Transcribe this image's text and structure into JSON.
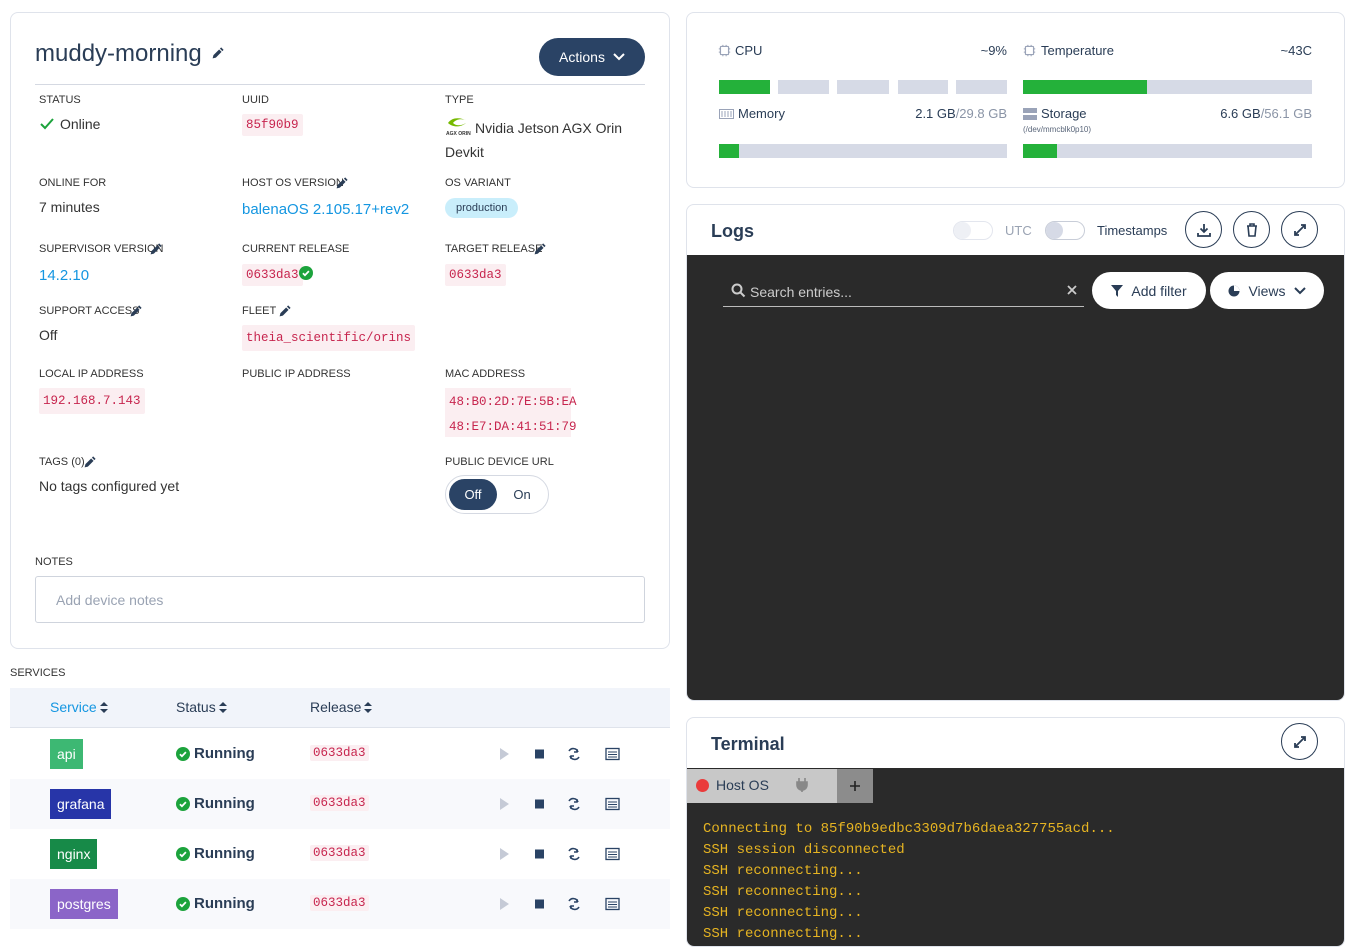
{
  "device": {
    "name": "muddy-morning",
    "actions": "Actions"
  },
  "details": {
    "status": {
      "label": "STATUS",
      "value": "Online"
    },
    "uuid": {
      "label": "UUID",
      "value": "85f90b9"
    },
    "type": {
      "label": "TYPE",
      "logo_text": "AGX ORIN",
      "value": "Nvidia Jetson AGX Orin Devkit"
    },
    "online_for": {
      "label": "ONLINE FOR",
      "value": "7 minutes"
    },
    "host_os_version": {
      "label": "HOST OS VERSION",
      "value": "balenaOS 2.105.17+rev2"
    },
    "os_variant": {
      "label": "OS VARIANT",
      "value": "production"
    },
    "supervisor_version": {
      "label": "SUPERVISOR VERSION",
      "value": "14.2.10"
    },
    "current_release": {
      "label": "CURRENT RELEASE",
      "value": "0633da3"
    },
    "target_release": {
      "label": "TARGET RELEASE",
      "value": "0633da3"
    },
    "support_access": {
      "label": "SUPPORT ACCESS",
      "value": "Off"
    },
    "fleet": {
      "label": "FLEET",
      "value": "theia_scientific/orins"
    },
    "local_ip": {
      "label": "LOCAL IP ADDRESS",
      "value": "192.168.7.143"
    },
    "public_ip": {
      "label": "PUBLIC IP ADDRESS"
    },
    "mac_address": {
      "label": "MAC ADDRESS",
      "values": [
        "48:B0:2D:7E:5B:EA",
        "48:E7:DA:41:51:79"
      ]
    },
    "tags": {
      "label": "TAGS (0)",
      "value": "No tags configured yet"
    },
    "public_device_url": {
      "label": "PUBLIC DEVICE URL",
      "options": [
        "Off",
        "On"
      ]
    },
    "notes": {
      "label": "NOTES",
      "placeholder": "Add device notes"
    }
  },
  "services": {
    "label": "SERVICES",
    "columns": [
      "Service",
      "Status",
      "Release"
    ],
    "rows": [
      {
        "name": "api",
        "color": "#3db873",
        "status": "Running",
        "release": "0633da3"
      },
      {
        "name": "grafana",
        "color": "#2735a8",
        "status": "Running",
        "release": "0633da3"
      },
      {
        "name": "nginx",
        "color": "#178a48",
        "status": "Running",
        "release": "0633da3"
      },
      {
        "name": "postgres",
        "color": "#8b65c8",
        "status": "Running",
        "release": "0633da3"
      }
    ]
  },
  "metrics": {
    "cpu": {
      "label": "CPU",
      "value": "~9%"
    },
    "temperature": {
      "label": "Temperature",
      "value": "~43C"
    },
    "memory": {
      "label": "Memory",
      "used": "2.1 GB",
      "total": "/29.8 GB"
    },
    "storage": {
      "label": "Storage",
      "sublabel": "(/dev/mmcblk0p10)",
      "used": "6.6 GB",
      "total": "/56.1 GB"
    }
  },
  "logs": {
    "title": "Logs",
    "utc": "UTC",
    "timestamps": "Timestamps",
    "search_placeholder": "Search entries...",
    "add_filter": "Add filter",
    "views": "Views"
  },
  "terminal": {
    "title": "Terminal",
    "tab": "Host OS",
    "lines": [
      "Connecting to 85f90b9edbc3309d7b6daea327755acd...",
      "SSH session disconnected",
      "SSH reconnecting...",
      "SSH reconnecting...",
      "SSH reconnecting...",
      "SSH reconnecting..."
    ]
  }
}
